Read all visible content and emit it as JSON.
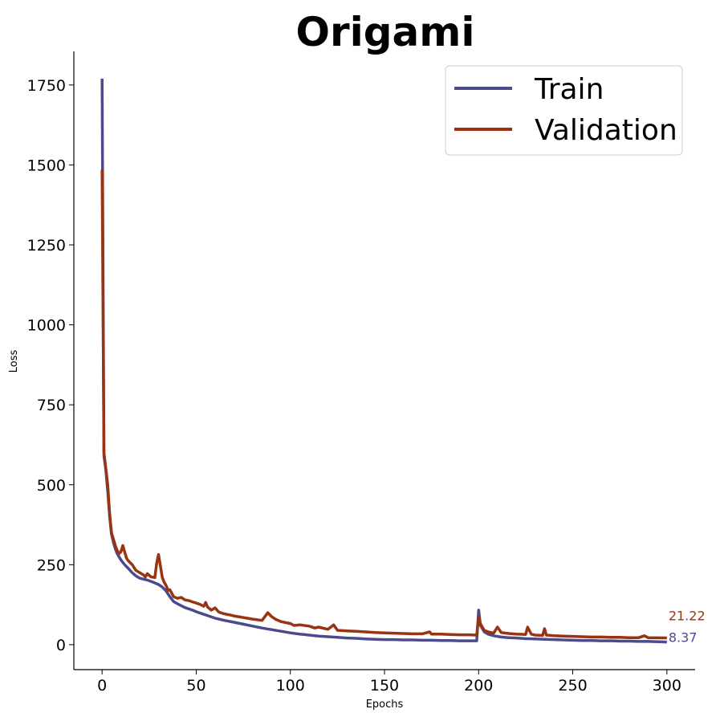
{
  "chart_data": {
    "type": "line",
    "title": "Origami",
    "xlabel": "Epochs",
    "ylabel": "Loss",
    "xlim": [
      -15,
      315
    ],
    "ylim": [
      -78,
      1855
    ],
    "xticks": [
      0,
      50,
      100,
      150,
      200,
      250,
      300
    ],
    "yticks": [
      0,
      250,
      500,
      750,
      1000,
      1250,
      1500,
      1750
    ],
    "grid": false,
    "legend": "top-right",
    "series": [
      {
        "name": "Train",
        "color": "#4B4B8C",
        "final_label": "8.37",
        "x": [
          0,
          1,
          2,
          3,
          4,
          5,
          6,
          7,
          8,
          9,
          10,
          12,
          14,
          16,
          18,
          20,
          22,
          24,
          26,
          28,
          30,
          32,
          34,
          36,
          38,
          40,
          42,
          44,
          46,
          48,
          50,
          55,
          60,
          65,
          70,
          75,
          80,
          85,
          90,
          95,
          100,
          105,
          110,
          115,
          120,
          125,
          130,
          135,
          140,
          145,
          150,
          155,
          160,
          165,
          170,
          175,
          180,
          185,
          190,
          195,
          199,
          200,
          201,
          203,
          205,
          208,
          212,
          216,
          220,
          225,
          230,
          235,
          240,
          245,
          250,
          255,
          260,
          265,
          270,
          275,
          280,
          285,
          290,
          295,
          300
        ],
        "y": [
          1770,
          590,
          545,
          480,
          400,
          345,
          320,
          300,
          285,
          275,
          265,
          250,
          238,
          225,
          215,
          208,
          205,
          202,
          198,
          193,
          188,
          180,
          168,
          150,
          135,
          128,
          122,
          116,
          112,
          108,
          103,
          93,
          83,
          76,
          70,
          64,
          58,
          52,
          47,
          42,
          37,
          33,
          30,
          27,
          25,
          23,
          21,
          20,
          18,
          17,
          16,
          16,
          15,
          15,
          14,
          14,
          13,
          13,
          12,
          12,
          12,
          108,
          60,
          40,
          33,
          28,
          24,
          22,
          21,
          19,
          18,
          17,
          16,
          15,
          14,
          13,
          13,
          12,
          12,
          11,
          11,
          10,
          10,
          9,
          8.37
        ]
      },
      {
        "name": "Validation",
        "color": "#993311",
        "final_label": "21.22",
        "x": [
          0,
          1,
          2,
          3,
          4,
          5,
          6,
          7,
          8,
          9,
          10,
          11,
          12,
          13,
          14,
          16,
          18,
          20,
          22,
          23,
          24,
          26,
          28,
          29,
          30,
          31,
          32,
          33,
          34,
          35,
          36,
          38,
          40,
          42,
          44,
          46,
          48,
          50,
          52,
          54,
          55,
          56,
          58,
          60,
          62,
          64,
          66,
          68,
          70,
          75,
          80,
          85,
          88,
          90,
          92,
          95,
          100,
          102,
          105,
          110,
          113,
          115,
          120,
          123,
          125,
          130,
          135,
          140,
          145,
          150,
          155,
          160,
          165,
          170,
          174,
          175,
          180,
          185,
          190,
          195,
          199,
          200,
          201,
          203,
          205,
          208,
          210,
          212,
          216,
          220,
          225,
          226,
          228,
          230,
          234,
          235,
          236,
          240,
          245,
          250,
          255,
          260,
          265,
          270,
          275,
          280,
          285,
          288,
          290,
          295,
          300
        ],
        "y": [
          1485,
          600,
          550,
          500,
          410,
          350,
          330,
          310,
          295,
          285,
          290,
          310,
          290,
          270,
          262,
          250,
          232,
          225,
          218,
          212,
          222,
          212,
          210,
          255,
          282,
          245,
          210,
          195,
          185,
          170,
          172,
          150,
          145,
          148,
          140,
          138,
          134,
          130,
          126,
          120,
          132,
          118,
          108,
          115,
          102,
          98,
          95,
          93,
          90,
          85,
          80,
          76,
          100,
          88,
          80,
          72,
          66,
          60,
          62,
          58,
          52,
          55,
          48,
          62,
          45,
          43,
          42,
          40,
          38,
          37,
          36,
          35,
          34,
          34,
          40,
          33,
          33,
          32,
          31,
          31,
          30,
          88,
          65,
          45,
          40,
          36,
          55,
          38,
          35,
          33,
          32,
          55,
          33,
          30,
          29,
          50,
          30,
          28,
          27,
          26,
          25,
          24,
          24,
          23,
          23,
          22,
          22,
          28,
          22,
          21.5,
          21.22
        ]
      }
    ]
  }
}
